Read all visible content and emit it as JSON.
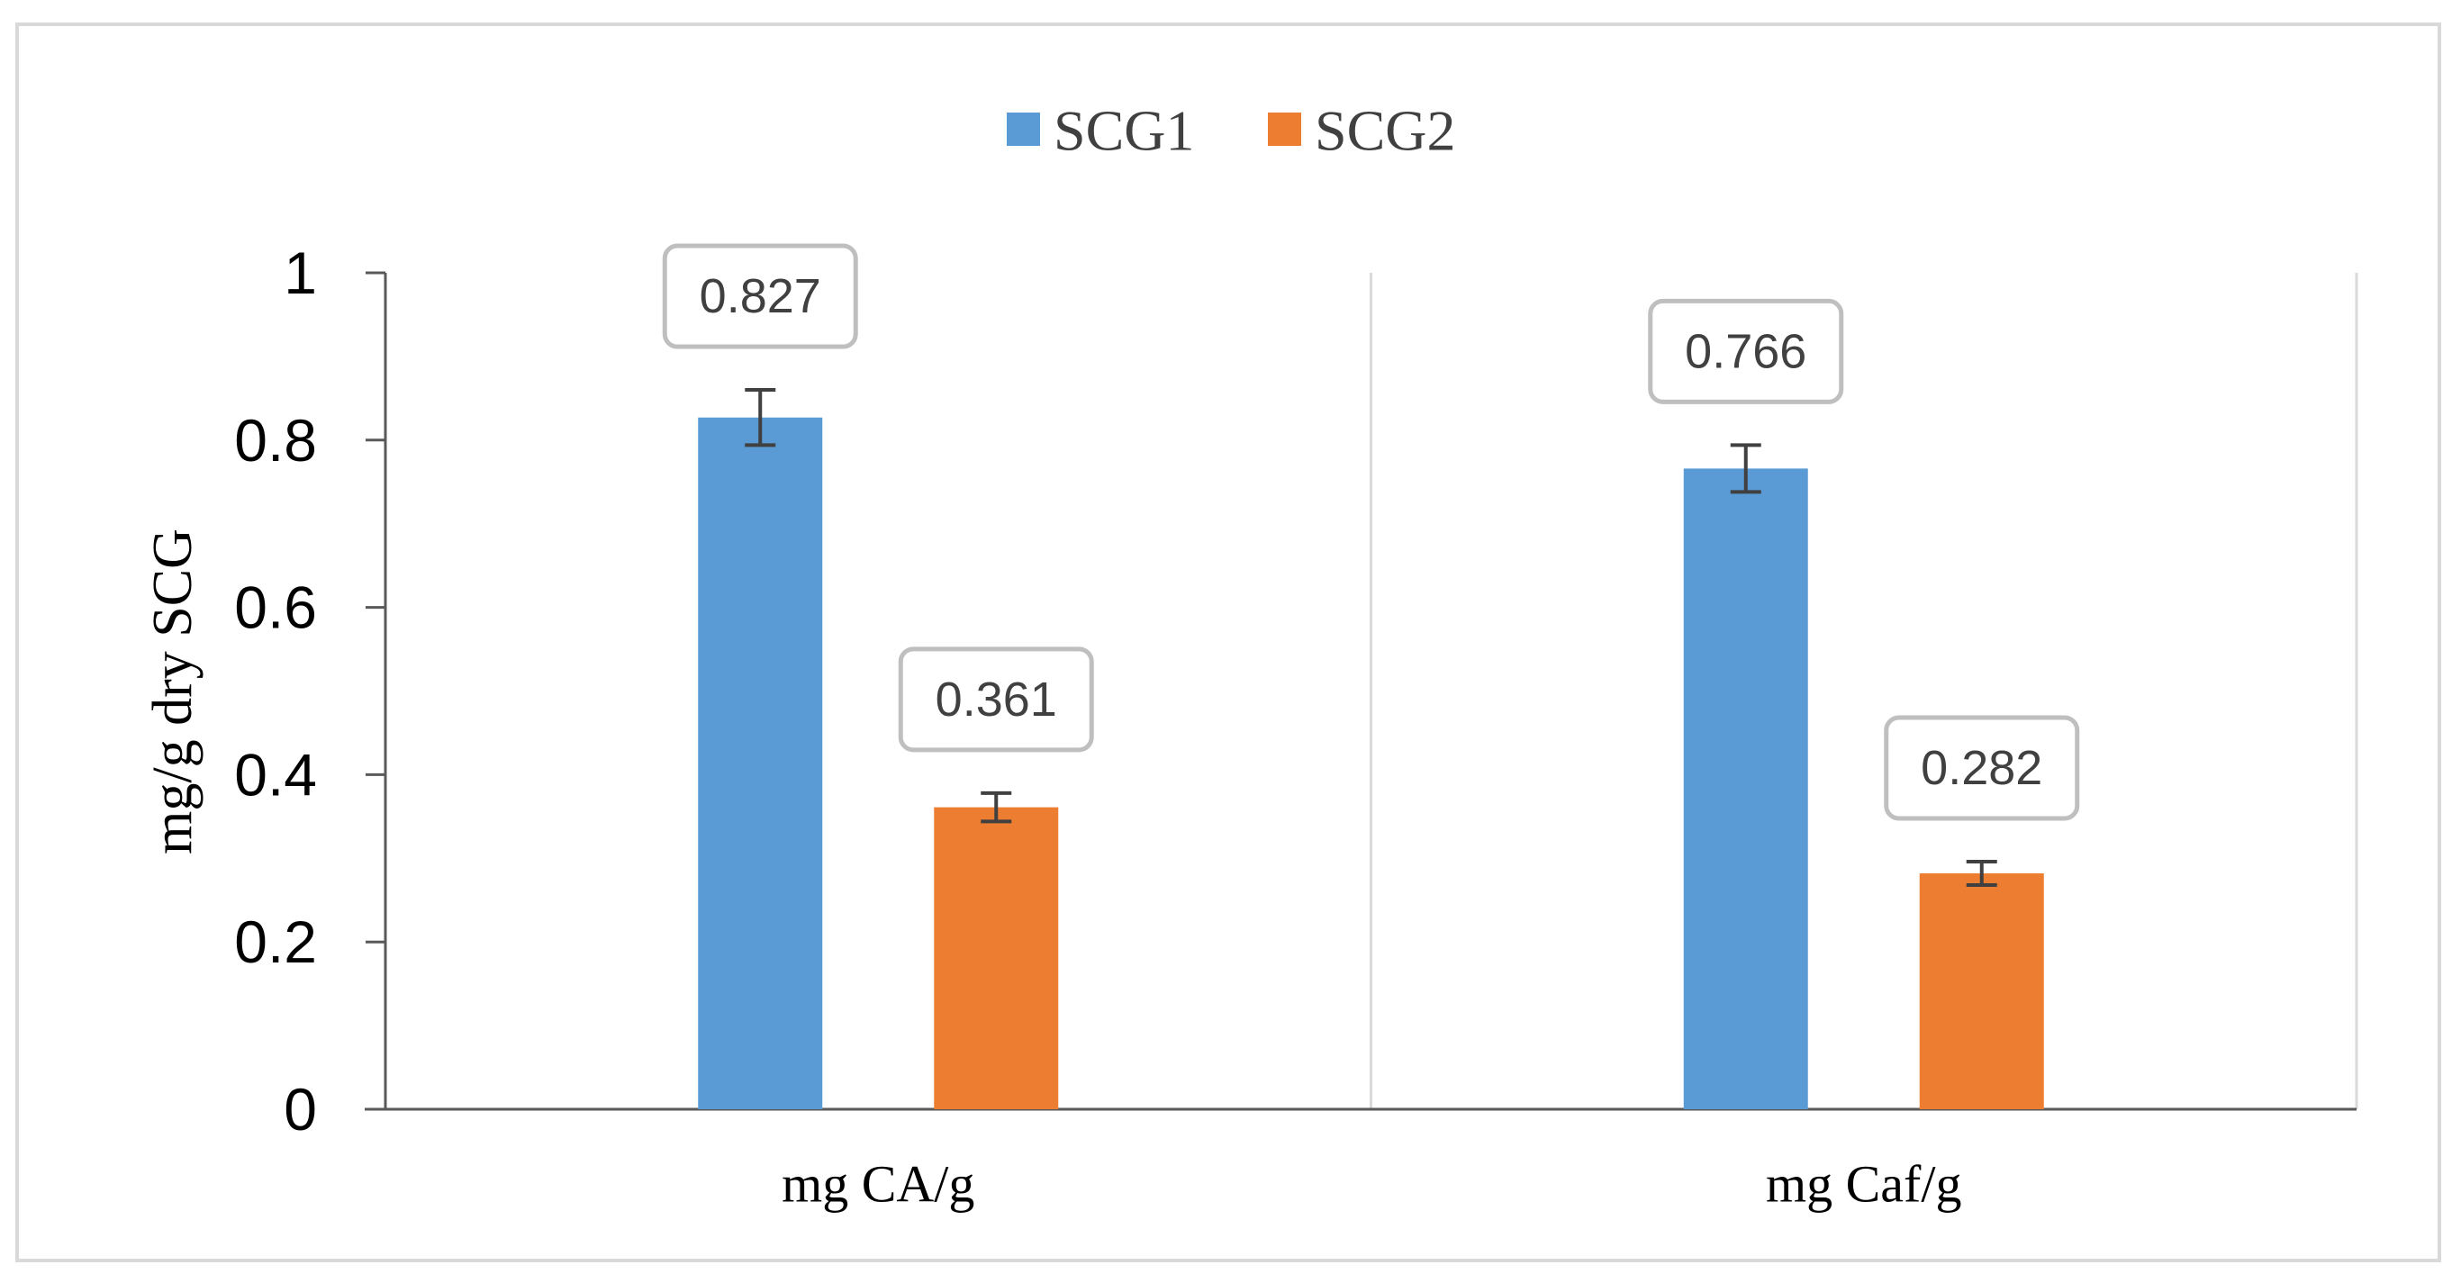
{
  "chart_data": {
    "type": "bar",
    "title": "",
    "xlabel": "",
    "ylabel": "mg/g dry SCG",
    "categories": [
      "mg CA/g",
      "mg Caf/g"
    ],
    "series": [
      {
        "name": "SCG1",
        "color": "#5B9BD5",
        "values": [
          0.827,
          0.766
        ],
        "errors": [
          0.033,
          0.028
        ],
        "labels": [
          "0.827",
          "0.766"
        ]
      },
      {
        "name": "SCG2",
        "color": "#ED7D31",
        "values": [
          0.361,
          0.282
        ],
        "errors": [
          0.017,
          0.014
        ],
        "labels": [
          "0.361",
          "0.282"
        ]
      }
    ],
    "ylim": [
      0,
      1
    ],
    "yticks": [
      0,
      0.2,
      0.4,
      0.6,
      0.8,
      1
    ],
    "ytick_labels": [
      "0",
      "0.2",
      "0.4",
      "0.6",
      "0.8",
      "1"
    ],
    "legend_position": "top-center",
    "grid": false
  }
}
